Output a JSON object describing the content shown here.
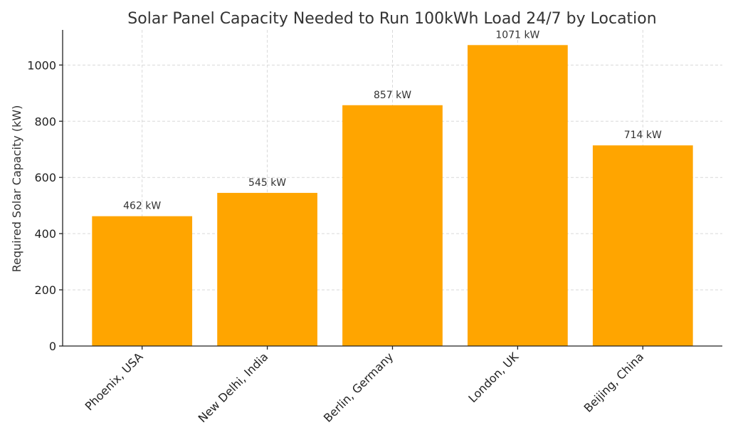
{
  "chart_data": {
    "type": "bar",
    "title": "Solar Panel Capacity Needed to Run 100kWh Load 24/7 by Location",
    "xlabel": "",
    "ylabel": "Required Solar Capacity (kW)",
    "categories": [
      "Phoenix, USA",
      "New Delhi, India",
      "Berlin, Germany",
      "London, UK",
      "Beijing, China"
    ],
    "values": [
      462,
      545,
      857,
      1071,
      714
    ],
    "data_labels": [
      "462 kW",
      "545 kW",
      "857 kW",
      "1071 kW",
      "714 kW"
    ],
    "ylim": [
      0,
      1125
    ],
    "yticks": [
      0,
      200,
      400,
      600,
      800,
      1000
    ],
    "grid": true,
    "bar_color": "#FFA500",
    "x_tick_rotation": 45
  }
}
